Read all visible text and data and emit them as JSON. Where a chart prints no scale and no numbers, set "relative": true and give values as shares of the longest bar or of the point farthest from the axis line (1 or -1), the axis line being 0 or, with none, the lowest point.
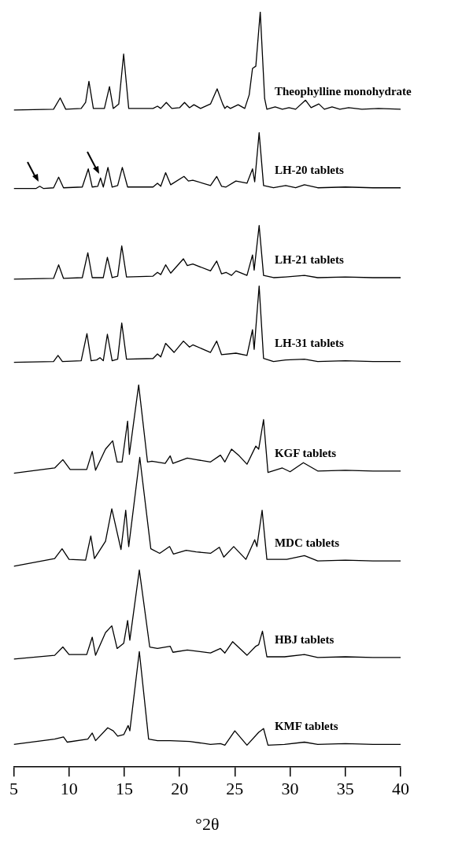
{
  "chart_data": {
    "type": "line",
    "relative": true,
    "xlabel": "°2θ",
    "xlim": [
      5,
      40
    ],
    "xticks": [
      5,
      10,
      15,
      20,
      25,
      30,
      35,
      40
    ],
    "grid": false,
    "legend": false,
    "marker": "none",
    "line_style": "solid",
    "series": [
      {
        "name": "Theophylline monohydrate",
        "color": "#000000",
        "x": [
          5,
          8.6,
          9.2,
          9.7,
          11.1,
          11.5,
          11.8,
          12.2,
          13.2,
          13.66,
          14.0,
          14.5,
          14.94,
          15.4,
          17.6,
          18.0,
          18.3,
          18.8,
          19.3,
          20.0,
          20.45,
          20.9,
          21.3,
          21.9,
          22.8,
          23.4,
          23.9,
          24.1,
          24.3,
          24.6,
          25.3,
          25.9,
          26.3,
          26.6,
          26.9,
          27.3,
          27.7,
          27.9,
          28.65,
          29.3,
          29.9,
          30.5,
          31.4,
          31.9,
          32.6,
          33.1,
          33.8,
          34.5,
          35.3,
          36.5,
          38,
          40
        ],
        "values": [
          0.87,
          0.871,
          0.886,
          0.871,
          0.872,
          0.88,
          0.908,
          0.872,
          0.872,
          0.901,
          0.872,
          0.878,
          0.944,
          0.872,
          0.872,
          0.875,
          0.872,
          0.88,
          0.872,
          0.873,
          0.88,
          0.873,
          0.877,
          0.872,
          0.878,
          0.898,
          0.878,
          0.872,
          0.875,
          0.872,
          0.877,
          0.872,
          0.89,
          0.925,
          0.928,
          1.0,
          0.885,
          0.871,
          0.874,
          0.871,
          0.873,
          0.871,
          0.883,
          0.873,
          0.878,
          0.871,
          0.874,
          0.871,
          0.873,
          0.871,
          0.872,
          0.871
        ]
      },
      {
        "name": "LH-20 tablets",
        "color": "#000000",
        "x": [
          5,
          7.0,
          7.35,
          7.7,
          8.6,
          9.06,
          9.5,
          11.2,
          11.74,
          12.1,
          12.6,
          12.85,
          13.1,
          13.52,
          13.9,
          14.4,
          14.82,
          15.3,
          17.6,
          18.0,
          18.3,
          18.74,
          19.2,
          20.4,
          20.8,
          21.2,
          22.8,
          23.36,
          23.8,
          24.2,
          25.1,
          26.1,
          26.6,
          26.8,
          27.2,
          27.6,
          28.5,
          29.6,
          30.5,
          31.3,
          32.5,
          35,
          37.5,
          40
        ],
        "values": [
          0.766,
          0.766,
          0.769,
          0.766,
          0.767,
          0.781,
          0.767,
          0.768,
          0.792,
          0.768,
          0.769,
          0.78,
          0.768,
          0.794,
          0.768,
          0.77,
          0.794,
          0.768,
          0.768,
          0.773,
          0.769,
          0.787,
          0.771,
          0.782,
          0.776,
          0.777,
          0.77,
          0.782,
          0.769,
          0.768,
          0.776,
          0.773,
          0.792,
          0.775,
          0.84,
          0.77,
          0.767,
          0.77,
          0.767,
          0.771,
          0.767,
          0.768,
          0.767,
          0.767
        ]
      },
      {
        "name": "LH-21 tablets",
        "color": "#000000",
        "x": [
          5,
          8.6,
          9.06,
          9.5,
          11.2,
          11.7,
          12.1,
          13.1,
          13.47,
          13.9,
          14.4,
          14.77,
          15.2,
          17.6,
          18.0,
          18.3,
          18.74,
          19.2,
          20.35,
          20.7,
          21.2,
          22.8,
          23.36,
          23.8,
          24.2,
          24.7,
          25.1,
          26.1,
          26.6,
          26.75,
          27.2,
          27.6,
          28.5,
          29.6,
          31.3,
          32.5,
          35,
          37.5,
          40
        ],
        "values": [
          0.646,
          0.647,
          0.665,
          0.647,
          0.648,
          0.681,
          0.648,
          0.648,
          0.675,
          0.648,
          0.65,
          0.69,
          0.649,
          0.65,
          0.655,
          0.652,
          0.665,
          0.654,
          0.673,
          0.664,
          0.666,
          0.657,
          0.67,
          0.653,
          0.655,
          0.651,
          0.657,
          0.651,
          0.678,
          0.658,
          0.717,
          0.651,
          0.648,
          0.649,
          0.651,
          0.648,
          0.649,
          0.648,
          0.648
        ]
      },
      {
        "name": "LH-31 tablets",
        "color": "#000000",
        "x": [
          5,
          8.6,
          9.0,
          9.4,
          11.1,
          11.62,
          12.0,
          12.5,
          12.8,
          13.1,
          13.47,
          13.9,
          14.4,
          14.77,
          15.2,
          17.6,
          18.0,
          18.3,
          18.74,
          19.5,
          20.35,
          20.9,
          21.2,
          22.8,
          23.36,
          23.8,
          25.1,
          26.1,
          26.6,
          26.75,
          27.2,
          27.6,
          28.5,
          29.6,
          31.3,
          32.5,
          35,
          37.5,
          40
        ],
        "values": [
          0.536,
          0.537,
          0.545,
          0.537,
          0.538,
          0.574,
          0.538,
          0.539,
          0.542,
          0.538,
          0.573,
          0.538,
          0.54,
          0.588,
          0.54,
          0.541,
          0.547,
          0.543,
          0.561,
          0.549,
          0.564,
          0.556,
          0.559,
          0.549,
          0.564,
          0.546,
          0.548,
          0.545,
          0.579,
          0.553,
          0.637,
          0.541,
          0.537,
          0.539,
          0.54,
          0.537,
          0.538,
          0.537,
          0.537
        ]
      },
      {
        "name": "KGF tablets",
        "color": "#000000",
        "x": [
          5,
          8.7,
          9.44,
          10.1,
          11.6,
          12.1,
          12.4,
          13.3,
          13.95,
          14.35,
          14.8,
          15.3,
          15.46,
          16.3,
          17.1,
          17.5,
          18.7,
          19.15,
          19.4,
          20.7,
          21.5,
          22.8,
          23.7,
          24.1,
          24.7,
          25.4,
          26.1,
          26.9,
          27.16,
          27.6,
          28.0,
          29.3,
          30.0,
          31.2,
          32.5,
          35,
          37.5,
          40
        ],
        "values": [
          0.389,
          0.396,
          0.407,
          0.394,
          0.394,
          0.418,
          0.393,
          0.421,
          0.432,
          0.404,
          0.404,
          0.458,
          0.414,
          0.506,
          0.404,
          0.405,
          0.402,
          0.412,
          0.402,
          0.409,
          0.407,
          0.404,
          0.413,
          0.404,
          0.421,
          0.412,
          0.401,
          0.425,
          0.421,
          0.46,
          0.39,
          0.396,
          0.391,
          0.403,
          0.392,
          0.393,
          0.392,
          0.392
        ]
      },
      {
        "name": "MDC tablets",
        "color": "#000000",
        "x": [
          5,
          8.7,
          9.37,
          10.0,
          11.5,
          11.97,
          12.3,
          13.3,
          13.87,
          14.7,
          15.13,
          15.4,
          16.4,
          17.4,
          18.2,
          19.1,
          19.45,
          20.6,
          21.5,
          22.8,
          23.6,
          24.0,
          24.9,
          26.0,
          26.8,
          27.0,
          27.47,
          27.9,
          29.7,
          31.3,
          32.5,
          35,
          37.5,
          40
        ],
        "values": [
          0.266,
          0.276,
          0.289,
          0.275,
          0.274,
          0.306,
          0.276,
          0.299,
          0.342,
          0.288,
          0.34,
          0.292,
          0.41,
          0.289,
          0.283,
          0.292,
          0.282,
          0.287,
          0.285,
          0.283,
          0.291,
          0.278,
          0.292,
          0.275,
          0.301,
          0.292,
          0.34,
          0.275,
          0.275,
          0.28,
          0.273,
          0.274,
          0.273,
          0.273
        ]
      },
      {
        "name": "HBJ tablets",
        "color": "#000000",
        "x": [
          5,
          8.7,
          9.44,
          10.0,
          11.6,
          12.1,
          12.4,
          13.3,
          13.87,
          14.35,
          14.95,
          15.3,
          15.5,
          16.36,
          17.3,
          18.0,
          19.15,
          19.4,
          20.7,
          22.8,
          23.7,
          24.1,
          24.8,
          26.1,
          26.9,
          27.16,
          27.5,
          27.9,
          29.5,
          31.3,
          32.5,
          35,
          37.5,
          40
        ],
        "values": [
          0.143,
          0.148,
          0.159,
          0.149,
          0.149,
          0.172,
          0.148,
          0.178,
          0.187,
          0.157,
          0.164,
          0.194,
          0.168,
          0.261,
          0.159,
          0.157,
          0.16,
          0.152,
          0.155,
          0.151,
          0.157,
          0.151,
          0.166,
          0.148,
          0.16,
          0.162,
          0.18,
          0.146,
          0.146,
          0.149,
          0.145,
          0.146,
          0.145,
          0.145
        ]
      },
      {
        "name": "KMF tablets",
        "color": "#000000",
        "x": [
          5,
          8.7,
          9.5,
          9.84,
          11.7,
          12.1,
          12.4,
          13.5,
          14.0,
          14.4,
          14.95,
          15.35,
          15.5,
          16.36,
          17.2,
          18.0,
          19.15,
          20.9,
          22.8,
          23.7,
          24.1,
          25.0,
          26.1,
          27.16,
          27.6,
          28.0,
          29.5,
          31.3,
          32.5,
          35,
          37.5,
          40
        ],
        "values": [
          0.03,
          0.037,
          0.04,
          0.033,
          0.037,
          0.045,
          0.035,
          0.052,
          0.048,
          0.041,
          0.043,
          0.055,
          0.048,
          0.153,
          0.037,
          0.035,
          0.035,
          0.034,
          0.03,
          0.031,
          0.029,
          0.048,
          0.029,
          0.046,
          0.051,
          0.029,
          0.03,
          0.033,
          0.03,
          0.031,
          0.03,
          0.03
        ]
      }
    ]
  }
}
